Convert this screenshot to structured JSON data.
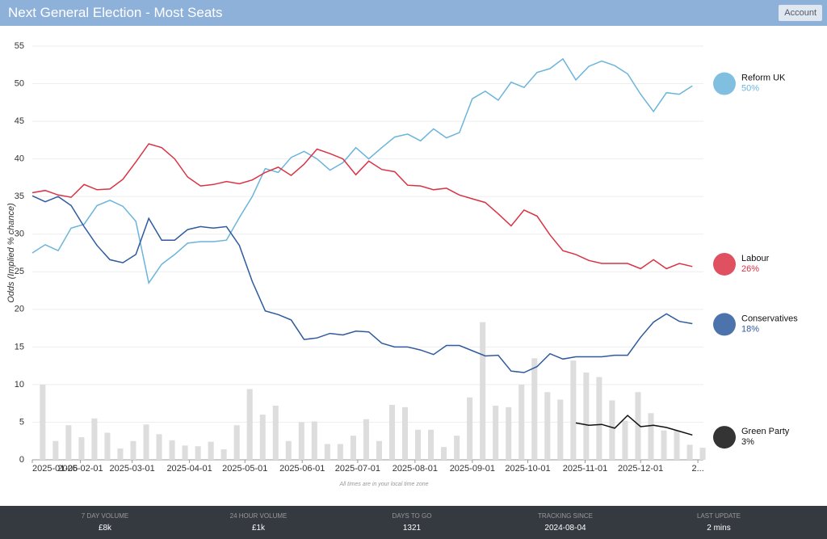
{
  "header": {
    "title": "Next General Election - Most Seats",
    "account": "Account"
  },
  "chart_data": {
    "type": "line",
    "y_label": "Odds (Implied % chance)",
    "note": "All times are in your local time zone",
    "x": [
      "2025-01-06",
      "2025-01-13",
      "2025-01-20",
      "2025-01-27",
      "2025-02-03",
      "2025-02-10",
      "2025-02-17",
      "2025-02-24",
      "2025-03-03",
      "2025-03-10",
      "2025-03-17",
      "2025-03-24",
      "2025-03-31",
      "2025-04-07",
      "2025-04-14",
      "2025-04-21",
      "2025-04-28",
      "2025-05-05",
      "2025-05-12",
      "2025-05-19",
      "2025-05-26",
      "2025-06-02",
      "2025-06-09",
      "2025-06-16",
      "2025-06-23",
      "2025-06-30",
      "2025-07-07",
      "2025-07-14",
      "2025-07-21",
      "2025-07-28",
      "2025-08-04",
      "2025-08-11",
      "2025-08-18",
      "2025-08-25",
      "2025-09-01",
      "2025-09-08",
      "2025-09-15",
      "2025-09-22",
      "2025-09-29",
      "2025-10-06",
      "2025-10-13",
      "2025-10-20",
      "2025-10-27",
      "2025-11-03",
      "2025-11-10",
      "2025-11-17",
      "2025-11-24",
      "2025-12-01",
      "2025-12-08",
      "2025-12-15",
      "2025-12-22",
      "2025-12-29"
    ],
    "xlim": [
      "2025-01-06",
      "2026-01-04"
    ],
    "xticks": [
      "2025-01-06",
      "2025-02-01",
      "2025-03-01",
      "2025-04-01",
      "2025-05-01",
      "2025-06-01",
      "2025-07-01",
      "2025-08-01",
      "2025-09-01",
      "2025-10-01",
      "2025-11-01",
      "2025-12-01",
      {
        "value": "2026-01-01",
        "label": "2..."
      }
    ],
    "ylim": [
      0,
      55
    ],
    "yticks": [
      0,
      5,
      10,
      15,
      20,
      25,
      30,
      35,
      40,
      45,
      50,
      55
    ],
    "grid": true,
    "series": [
      {
        "name": "Reform UK",
        "color": "#6bb4dc",
        "current": {
          "value": 50,
          "label": "50%"
        },
        "values": [
          27.5,
          28.6,
          27.8,
          30.8,
          31.3,
          33.8,
          34.5,
          33.7,
          31.7,
          23.5,
          26,
          27.3,
          28.8,
          29,
          29,
          29.2,
          32.2,
          35,
          38.7,
          38.2,
          40.2,
          41,
          40,
          38.5,
          39.5,
          41.5,
          40,
          41.5,
          42.9,
          43.3,
          42.4,
          44,
          42.8,
          43.5,
          48,
          49,
          47.8,
          50.2,
          49.5,
          51.5,
          52,
          53.3,
          50.5,
          52.3,
          53,
          52.4,
          51.3,
          48.6,
          46.3,
          48.8,
          48.6,
          49.7
        ]
      },
      {
        "name": "Labour",
        "color": "#d93344",
        "current": {
          "value": 26,
          "label": "26%"
        },
        "values": [
          35.5,
          35.8,
          35.2,
          34.9,
          36.6,
          35.9,
          36,
          37.3,
          39.6,
          42,
          41.5,
          40,
          37.6,
          36.4,
          36.6,
          37,
          36.7,
          37.2,
          38.2,
          38.9,
          37.8,
          39.3,
          41.3,
          40.7,
          40,
          37.9,
          39.7,
          38.6,
          38.3,
          36.5,
          36.4,
          35.9,
          36.1,
          35.2,
          34.7,
          34.2,
          32.7,
          31.1,
          33.2,
          32.4,
          29.9,
          27.8,
          27.3,
          26.5,
          26.1,
          26.1,
          26.1,
          25.4,
          26.6,
          25.4,
          26.1,
          25.7
        ]
      },
      {
        "name": "Conservatives",
        "color": "#2e5a9e",
        "current": {
          "value": 18,
          "label": "18%"
        },
        "values": [
          35.1,
          34.3,
          35,
          33.8,
          31,
          28.5,
          26.6,
          26.2,
          27.3,
          32.1,
          29.2,
          29.2,
          30.6,
          31,
          30.8,
          31,
          28.5,
          23.7,
          19.8,
          19.3,
          18.6,
          16,
          16.2,
          16.8,
          16.6,
          17.1,
          17,
          15.5,
          15,
          15,
          14.6,
          14,
          15.2,
          15.2,
          14.5,
          13.8,
          13.9,
          11.8,
          11.6,
          12.4,
          14.1,
          13.4,
          13.7,
          13.7,
          13.7,
          13.9,
          13.9,
          16.3,
          18.3,
          19.4,
          18.4,
          18.1
        ]
      },
      {
        "name": "Green Party",
        "color": "#111111",
        "current": {
          "value": 3,
          "label": "3%"
        },
        "values": [
          null,
          null,
          null,
          null,
          null,
          null,
          null,
          null,
          null,
          null,
          null,
          null,
          null,
          null,
          null,
          null,
          null,
          null,
          null,
          null,
          null,
          null,
          null,
          null,
          null,
          null,
          null,
          null,
          null,
          null,
          null,
          null,
          null,
          null,
          null,
          null,
          null,
          null,
          null,
          null,
          null,
          null,
          4.9,
          4.6,
          4.7,
          4.2,
          5.9,
          4.4,
          4.6,
          4.3,
          3.8,
          3.3
        ]
      }
    ],
    "volume": {
      "color": "#dddddd",
      "values": [
        10,
        2.5,
        4.6,
        3,
        5.5,
        3.6,
        1.5,
        2.5,
        4.7,
        3.4,
        2.6,
        1.9,
        1.8,
        2.4,
        1.4,
        4.6,
        9.4,
        6,
        7.2,
        2.5,
        5,
        5.1,
        2.1,
        2.1,
        3.2,
        5.4,
        2.5,
        7.3,
        7,
        4,
        4,
        1.7,
        3.2,
        8.3,
        18.3,
        7.2,
        7,
        10,
        13.5,
        9,
        8,
        13.2,
        11.6,
        11,
        7.9,
        5.2,
        9,
        6.2,
        3.9,
        3.9,
        2,
        1.6
      ]
    }
  },
  "footer": [
    {
      "label": "7 DAY VOLUME",
      "value": "£8k"
    },
    {
      "label": "24 HOUR VOLUME",
      "value": "£1k"
    },
    {
      "label": "DAYS TO GO",
      "value": "1321"
    },
    {
      "label": "TRACKING SINCE",
      "value": "2024-08-04"
    },
    {
      "label": "LAST UPDATE",
      "value": "2 mins"
    }
  ]
}
